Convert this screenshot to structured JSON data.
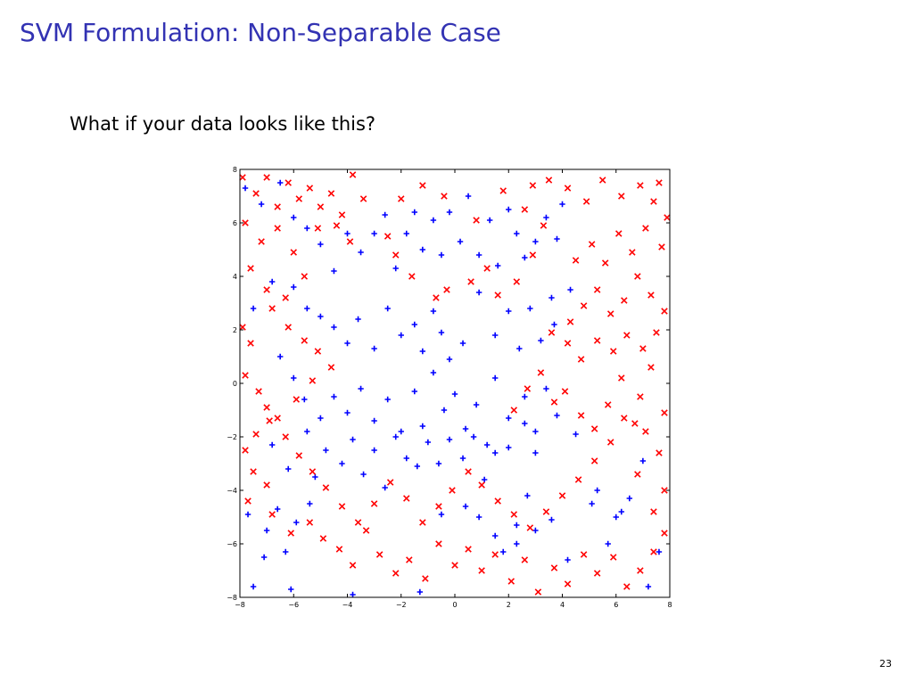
{
  "slide": {
    "title": "SVM Formulation: Non-Separable Case",
    "question": "What if your data looks like this?",
    "page_number": "23"
  },
  "chart_data": {
    "type": "scatter",
    "xlim": [
      -8,
      8
    ],
    "ylim": [
      -8,
      8
    ],
    "x_ticks": [
      -8,
      -6,
      -4,
      -2,
      0,
      2,
      4,
      6,
      8
    ],
    "y_ticks": [
      -8,
      -6,
      -4,
      -2,
      0,
      2,
      4,
      6,
      8
    ],
    "x_tick_labels": [
      "−8",
      "−6",
      "−4",
      "−2",
      "0",
      "2",
      "4",
      "6",
      "8"
    ],
    "y_tick_labels": [
      "−8",
      "−6",
      "−4",
      "−2",
      "0",
      "2",
      "4",
      "6",
      "8"
    ],
    "grid": false,
    "series": [
      {
        "marker": "plus",
        "color": "#0000ff",
        "points": [
          [
            -7.8,
            7.3
          ],
          [
            -7.2,
            6.7
          ],
          [
            -6.5,
            7.5
          ],
          [
            -6.0,
            6.2
          ],
          [
            -5.5,
            5.8
          ],
          [
            -5.0,
            5.2
          ],
          [
            -4.5,
            4.2
          ],
          [
            -4.0,
            5.6
          ],
          [
            -3.5,
            4.9
          ],
          [
            -3.0,
            5.6
          ],
          [
            -2.6,
            6.3
          ],
          [
            -2.2,
            4.3
          ],
          [
            -1.8,
            5.6
          ],
          [
            -1.5,
            6.4
          ],
          [
            -1.2,
            5.0
          ],
          [
            -0.8,
            6.1
          ],
          [
            -0.5,
            4.8
          ],
          [
            -0.2,
            6.4
          ],
          [
            0.2,
            5.3
          ],
          [
            0.5,
            7.0
          ],
          [
            0.9,
            4.8
          ],
          [
            1.3,
            6.1
          ],
          [
            1.6,
            4.4
          ],
          [
            2.0,
            6.5
          ],
          [
            2.3,
            5.6
          ],
          [
            2.6,
            4.7
          ],
          [
            3.0,
            5.3
          ],
          [
            3.4,
            6.2
          ],
          [
            3.8,
            5.4
          ],
          [
            4.0,
            6.7
          ],
          [
            4.3,
            3.5
          ],
          [
            3.6,
            3.2
          ],
          [
            -6.8,
            3.8
          ],
          [
            -7.5,
            2.8
          ],
          [
            -6.0,
            3.6
          ],
          [
            -5.5,
            2.8
          ],
          [
            -5.0,
            2.5
          ],
          [
            -4.5,
            2.1
          ],
          [
            -4.0,
            1.5
          ],
          [
            -3.6,
            2.4
          ],
          [
            -3.0,
            1.3
          ],
          [
            -2.5,
            2.8
          ],
          [
            -2.0,
            1.8
          ],
          [
            -1.5,
            2.2
          ],
          [
            -1.2,
            1.2
          ],
          [
            -0.8,
            2.7
          ],
          [
            -0.5,
            1.9
          ],
          [
            -0.2,
            0.9
          ],
          [
            0.3,
            1.5
          ],
          [
            0.9,
            3.4
          ],
          [
            1.5,
            1.8
          ],
          [
            2.0,
            2.7
          ],
          [
            2.4,
            1.3
          ],
          [
            2.8,
            2.8
          ],
          [
            3.2,
            1.6
          ],
          [
            3.7,
            2.2
          ],
          [
            -6.5,
            1.0
          ],
          [
            -6.0,
            0.2
          ],
          [
            -5.6,
            -0.6
          ],
          [
            -5.0,
            -1.3
          ],
          [
            -4.5,
            -0.5
          ],
          [
            -4.0,
            -1.1
          ],
          [
            -3.5,
            -0.2
          ],
          [
            -3.0,
            -1.4
          ],
          [
            -2.5,
            -0.6
          ],
          [
            -2.0,
            -1.8
          ],
          [
            -1.5,
            -0.3
          ],
          [
            -1.2,
            -1.6
          ],
          [
            -0.8,
            0.4
          ],
          [
            -0.4,
            -1.0
          ],
          [
            0.0,
            -0.4
          ],
          [
            0.4,
            -1.7
          ],
          [
            0.8,
            -0.8
          ],
          [
            1.2,
            -2.3
          ],
          [
            1.5,
            0.2
          ],
          [
            2.0,
            -1.3
          ],
          [
            2.6,
            -0.5
          ],
          [
            3.0,
            -1.8
          ],
          [
            3.4,
            -0.2
          ],
          [
            3.8,
            -1.2
          ],
          [
            -6.8,
            -2.3
          ],
          [
            -6.2,
            -3.2
          ],
          [
            -5.5,
            -1.8
          ],
          [
            -5.2,
            -3.5
          ],
          [
            -4.8,
            -2.5
          ],
          [
            -4.2,
            -3.0
          ],
          [
            -3.8,
            -2.1
          ],
          [
            -3.4,
            -3.4
          ],
          [
            -3.0,
            -2.5
          ],
          [
            -2.6,
            -3.9
          ],
          [
            -2.2,
            -2.0
          ],
          [
            -1.8,
            -2.8
          ],
          [
            -1.4,
            -3.1
          ],
          [
            -1.0,
            -2.2
          ],
          [
            -0.6,
            -3.0
          ],
          [
            -0.2,
            -2.1
          ],
          [
            0.3,
            -2.8
          ],
          [
            0.7,
            -2.0
          ],
          [
            1.1,
            -3.6
          ],
          [
            1.5,
            -2.6
          ],
          [
            2.0,
            -2.4
          ],
          [
            2.6,
            -1.5
          ],
          [
            3.0,
            -2.6
          ],
          [
            -7.7,
            -4.9
          ],
          [
            -7.0,
            -5.5
          ],
          [
            -6.6,
            -4.7
          ],
          [
            -6.3,
            -6.3
          ],
          [
            -5.9,
            -5.2
          ],
          [
            -5.4,
            -4.5
          ],
          [
            -6.1,
            -7.7
          ],
          [
            -7.5,
            -7.6
          ],
          [
            -3.8,
            -7.9
          ],
          [
            -1.3,
            -7.8
          ],
          [
            -0.5,
            -4.9
          ],
          [
            0.4,
            -4.6
          ],
          [
            0.9,
            -5.0
          ],
          [
            1.8,
            -6.3
          ],
          [
            2.3,
            -5.3
          ],
          [
            3.0,
            -5.5
          ],
          [
            3.6,
            -5.1
          ],
          [
            4.2,
            -6.6
          ],
          [
            5.1,
            -4.5
          ],
          [
            5.7,
            -6.0
          ],
          [
            6.0,
            -5.0
          ],
          [
            6.5,
            -4.3
          ],
          [
            7.2,
            -7.6
          ],
          [
            7.6,
            -6.3
          ],
          [
            7.0,
            -2.9
          ],
          [
            5.3,
            -4.0
          ],
          [
            4.5,
            -1.9
          ],
          [
            2.7,
            -4.2
          ],
          [
            2.3,
            -6.0
          ],
          [
            1.5,
            -5.7
          ],
          [
            6.2,
            -4.8
          ],
          [
            -7.1,
            -6.5
          ]
        ]
      },
      {
        "marker": "x",
        "color": "#ff0000",
        "points": [
          [
            -7.9,
            7.7
          ],
          [
            -7.4,
            7.1
          ],
          [
            -7.0,
            7.7
          ],
          [
            -6.6,
            6.6
          ],
          [
            -6.2,
            7.5
          ],
          [
            -5.8,
            6.9
          ],
          [
            -5.4,
            7.3
          ],
          [
            -5.0,
            6.6
          ],
          [
            -4.6,
            7.1
          ],
          [
            -4.2,
            6.3
          ],
          [
            -3.8,
            7.8
          ],
          [
            -3.4,
            6.9
          ],
          [
            -7.8,
            6.0
          ],
          [
            -7.2,
            5.3
          ],
          [
            -6.6,
            5.8
          ],
          [
            -6.0,
            4.9
          ],
          [
            -7.6,
            4.3
          ],
          [
            -7.0,
            3.5
          ],
          [
            -6.3,
            3.2
          ],
          [
            -5.6,
            4.0
          ],
          [
            -5.1,
            5.8
          ],
          [
            -4.4,
            5.9
          ],
          [
            -3.9,
            5.3
          ],
          [
            -2.2,
            4.8
          ],
          [
            -2.5,
            5.5
          ],
          [
            -1.6,
            4.0
          ],
          [
            -0.7,
            3.2
          ],
          [
            -0.3,
            3.5
          ],
          [
            0.6,
            3.8
          ],
          [
            1.2,
            4.3
          ],
          [
            1.6,
            3.3
          ],
          [
            2.3,
            3.8
          ],
          [
            2.9,
            4.8
          ],
          [
            3.3,
            5.9
          ],
          [
            -7.9,
            2.1
          ],
          [
            -7.6,
            1.5
          ],
          [
            -6.8,
            2.8
          ],
          [
            -6.2,
            2.1
          ],
          [
            -5.6,
            1.6
          ],
          [
            -5.1,
            1.2
          ],
          [
            -4.6,
            0.6
          ],
          [
            -7.8,
            0.3
          ],
          [
            -7.3,
            -0.3
          ],
          [
            -7.0,
            -0.9
          ],
          [
            -6.6,
            -1.3
          ],
          [
            -7.4,
            -1.9
          ],
          [
            -7.8,
            -2.5
          ],
          [
            -7.5,
            -3.3
          ],
          [
            -7.0,
            -3.8
          ],
          [
            -7.7,
            -4.4
          ],
          [
            -6.8,
            -4.9
          ],
          [
            -6.1,
            -5.6
          ],
          [
            -5.4,
            -5.2
          ],
          [
            -4.9,
            -5.8
          ],
          [
            -4.3,
            -6.2
          ],
          [
            -3.8,
            -6.8
          ],
          [
            -3.3,
            -5.5
          ],
          [
            -2.8,
            -6.4
          ],
          [
            -2.2,
            -7.1
          ],
          [
            -1.7,
            -6.6
          ],
          [
            -1.1,
            -7.3
          ],
          [
            -0.6,
            -6.0
          ],
          [
            0.0,
            -6.8
          ],
          [
            0.5,
            -6.2
          ],
          [
            1.0,
            -7.0
          ],
          [
            1.5,
            -6.4
          ],
          [
            2.1,
            -7.4
          ],
          [
            2.6,
            -6.6
          ],
          [
            3.1,
            -7.8
          ],
          [
            3.7,
            -6.9
          ],
          [
            4.2,
            -7.5
          ],
          [
            4.8,
            -6.4
          ],
          [
            5.3,
            -7.1
          ],
          [
            5.9,
            -6.5
          ],
          [
            6.4,
            -7.6
          ],
          [
            6.9,
            -7.0
          ],
          [
            7.4,
            -6.3
          ],
          [
            7.8,
            -5.6
          ],
          [
            7.4,
            -4.8
          ],
          [
            7.8,
            -4.0
          ],
          [
            6.8,
            -3.4
          ],
          [
            7.6,
            -2.6
          ],
          [
            7.1,
            -1.8
          ],
          [
            7.8,
            -1.1
          ],
          [
            6.9,
            -0.5
          ],
          [
            6.3,
            -1.3
          ],
          [
            5.8,
            -2.2
          ],
          [
            5.2,
            -2.9
          ],
          [
            4.6,
            -3.6
          ],
          [
            4.0,
            -4.2
          ],
          [
            3.4,
            -4.8
          ],
          [
            2.8,
            -5.4
          ],
          [
            2.2,
            -4.9
          ],
          [
            1.6,
            -4.4
          ],
          [
            1.0,
            -3.8
          ],
          [
            0.5,
            -3.3
          ],
          [
            -0.1,
            -4.0
          ],
          [
            -0.6,
            -4.6
          ],
          [
            -1.2,
            -5.2
          ],
          [
            -1.8,
            -4.3
          ],
          [
            -2.4,
            -3.7
          ],
          [
            -3.0,
            -4.5
          ],
          [
            -3.6,
            -5.2
          ],
          [
            -4.2,
            -4.6
          ],
          [
            -4.8,
            -3.9
          ],
          [
            -5.3,
            -3.3
          ],
          [
            -5.8,
            -2.7
          ],
          [
            -6.3,
            -2.0
          ],
          [
            -6.9,
            -1.4
          ],
          [
            -5.9,
            -0.6
          ],
          [
            -5.3,
            0.1
          ],
          [
            2.2,
            -1.0
          ],
          [
            2.7,
            -0.2
          ],
          [
            3.2,
            0.4
          ],
          [
            3.7,
            -0.7
          ],
          [
            4.1,
            -0.3
          ],
          [
            4.7,
            -1.2
          ],
          [
            5.2,
            -1.7
          ],
          [
            5.7,
            -0.8
          ],
          [
            6.2,
            0.2
          ],
          [
            6.7,
            -1.5
          ],
          [
            7.3,
            0.6
          ],
          [
            4.3,
            2.3
          ],
          [
            4.8,
            2.9
          ],
          [
            5.3,
            3.5
          ],
          [
            5.8,
            2.6
          ],
          [
            6.3,
            3.1
          ],
          [
            6.8,
            4.0
          ],
          [
            7.3,
            3.3
          ],
          [
            7.8,
            2.7
          ],
          [
            7.5,
            1.9
          ],
          [
            7.0,
            1.3
          ],
          [
            6.4,
            1.8
          ],
          [
            5.9,
            1.2
          ],
          [
            5.3,
            1.6
          ],
          [
            4.7,
            0.9
          ],
          [
            4.2,
            1.5
          ],
          [
            3.6,
            1.9
          ],
          [
            4.5,
            4.6
          ],
          [
            5.1,
            5.2
          ],
          [
            5.6,
            4.5
          ],
          [
            6.1,
            5.6
          ],
          [
            6.6,
            4.9
          ],
          [
            7.1,
            5.8
          ],
          [
            7.7,
            5.1
          ],
          [
            7.9,
            6.2
          ],
          [
            7.4,
            6.8
          ],
          [
            6.9,
            7.4
          ],
          [
            6.2,
            7.0
          ],
          [
            5.5,
            7.6
          ],
          [
            4.9,
            6.8
          ],
          [
            4.2,
            7.3
          ],
          [
            3.5,
            7.6
          ],
          [
            7.6,
            7.5
          ],
          [
            -2.0,
            6.9
          ],
          [
            -1.2,
            7.4
          ],
          [
            -0.4,
            7.0
          ],
          [
            0.8,
            6.1
          ],
          [
            1.8,
            7.2
          ],
          [
            2.6,
            6.5
          ],
          [
            2.9,
            7.4
          ]
        ]
      }
    ]
  }
}
